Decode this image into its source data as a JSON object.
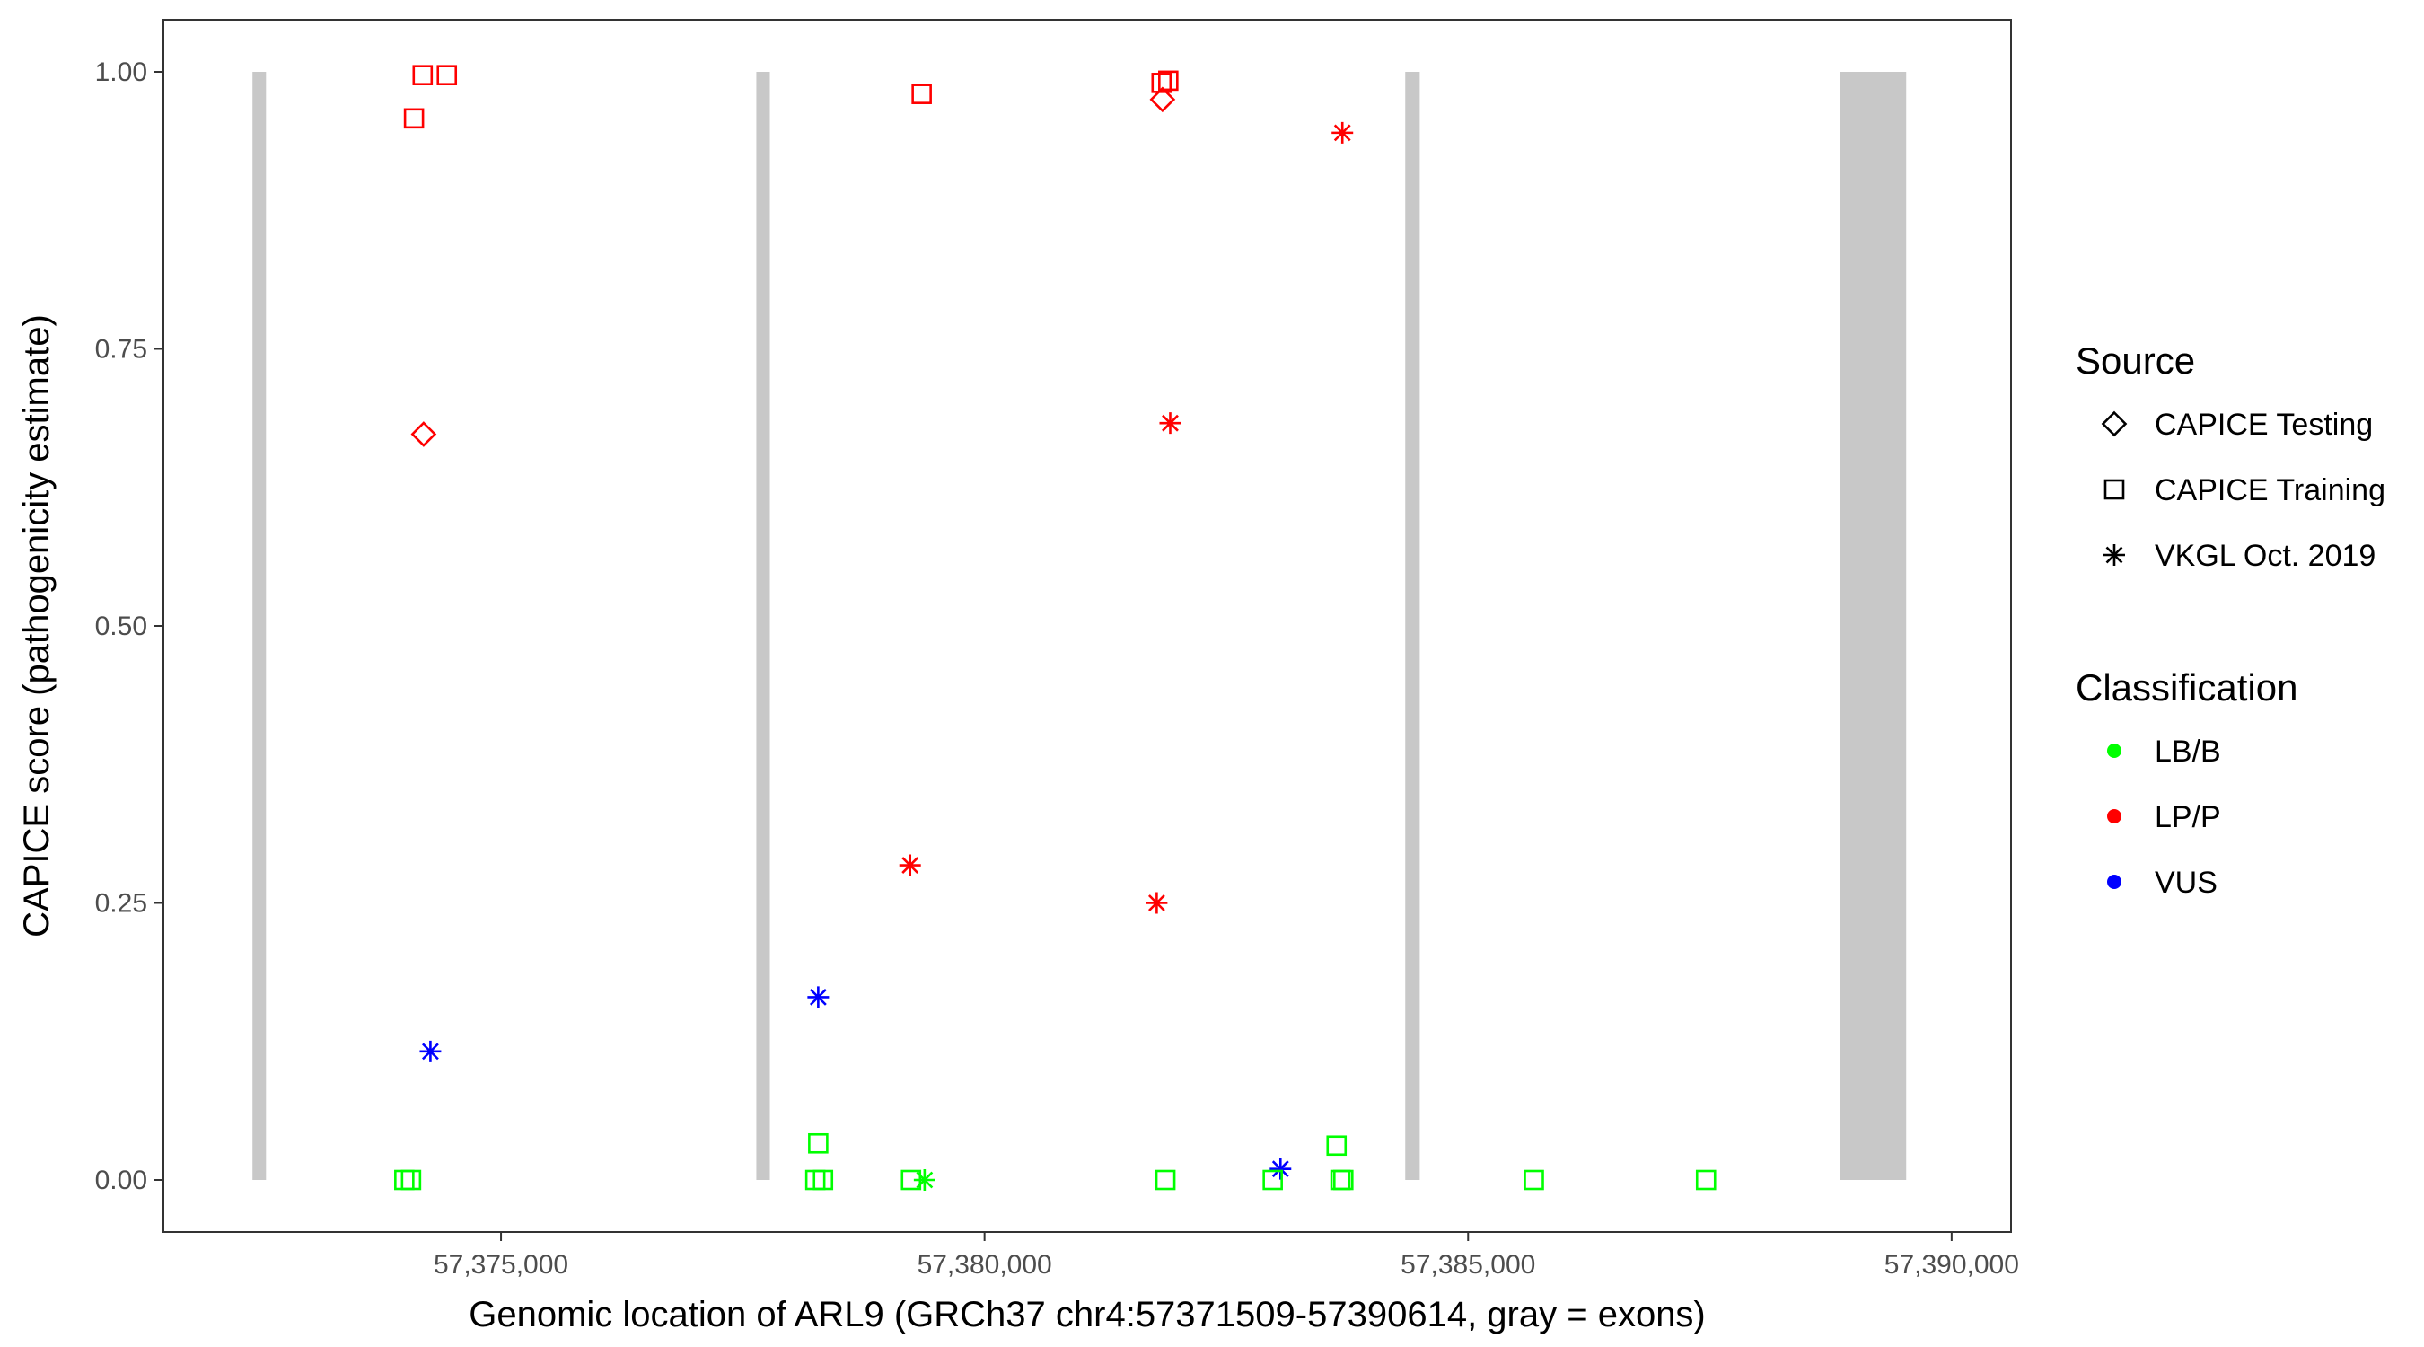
{
  "chart_data": {
    "type": "scatter",
    "xlabel": "Genomic location of ARL9 (GRCh37 chr4:57371509-57390614, gray = exons)",
    "ylabel": "CAPICE score (pathogenicity estimate)",
    "xlim": [
      57371509,
      57390614
    ],
    "ylim": [
      -0.047,
      1.047
    ],
    "x_ticks": [
      57375000,
      57380000,
      57385000,
      57390000
    ],
    "x_tick_labels": [
      "57,375,000",
      "57,380,000",
      "57,385,000",
      "57,390,000"
    ],
    "y_ticks": [
      0,
      0.25,
      0.5,
      0.75,
      1
    ],
    "y_tick_labels": [
      "0.00",
      "0.25",
      "0.50",
      "0.75",
      "1.00"
    ],
    "grid": false,
    "legend_position": "right",
    "exons": [
      {
        "start": 57372430,
        "end": 57372570
      },
      {
        "start": 57377640,
        "end": 57377780
      },
      {
        "start": 57384350,
        "end": 57384500
      },
      {
        "start": 57388850,
        "end": 57389530
      }
    ],
    "colors": {
      "LB/B": "#00ff00",
      "LP/P": "#ff0000",
      "VUS": "#0000ff",
      "exon": "#c8c8c8"
    },
    "legend": {
      "source_title": "Source",
      "source_items": [
        {
          "shape": "diamond",
          "label": "CAPICE Testing"
        },
        {
          "shape": "square",
          "label": "CAPICE Training"
        },
        {
          "shape": "asterisk",
          "label": "VKGL Oct. 2019"
        }
      ],
      "classification_title": "Classification",
      "classification_items": [
        {
          "label": "LB/B"
        },
        {
          "label": "LP/P"
        },
        {
          "label": "VUS"
        }
      ]
    },
    "points": [
      {
        "x": 57374190,
        "y": 0.997,
        "source": "CAPICE Training",
        "classification": "LP/P"
      },
      {
        "x": 57374440,
        "y": 0.997,
        "source": "CAPICE Training",
        "classification": "LP/P"
      },
      {
        "x": 57374100,
        "y": 0.958,
        "source": "CAPICE Training",
        "classification": "LP/P"
      },
      {
        "x": 57379350,
        "y": 0.98,
        "source": "CAPICE Training",
        "classification": "LP/P"
      },
      {
        "x": 57381830,
        "y": 0.99,
        "source": "CAPICE Training",
        "classification": "LP/P"
      },
      {
        "x": 57381900,
        "y": 0.992,
        "source": "CAPICE Training",
        "classification": "LP/P"
      },
      {
        "x": 57381840,
        "y": 0.975,
        "source": "CAPICE Testing",
        "classification": "LP/P"
      },
      {
        "x": 57383700,
        "y": 0.945,
        "source": "VKGL Oct. 2019",
        "classification": "LP/P"
      },
      {
        "x": 57374200,
        "y": 0.673,
        "source": "CAPICE Testing",
        "classification": "LP/P"
      },
      {
        "x": 57381920,
        "y": 0.683,
        "source": "VKGL Oct. 2019",
        "classification": "LP/P"
      },
      {
        "x": 57379230,
        "y": 0.284,
        "source": "VKGL Oct. 2019",
        "classification": "LP/P"
      },
      {
        "x": 57381780,
        "y": 0.25,
        "source": "VKGL Oct. 2019",
        "classification": "LP/P"
      },
      {
        "x": 57374270,
        "y": 0.116,
        "source": "VKGL Oct. 2019",
        "classification": "VUS"
      },
      {
        "x": 57378280,
        "y": 0.165,
        "source": "VKGL Oct. 2019",
        "classification": "VUS"
      },
      {
        "x": 57383060,
        "y": 0.01,
        "source": "VKGL Oct. 2019",
        "classification": "VUS"
      },
      {
        "x": 57378280,
        "y": 0.033,
        "source": "CAPICE Training",
        "classification": "LB/B"
      },
      {
        "x": 57383640,
        "y": 0.031,
        "source": "CAPICE Training",
        "classification": "LB/B"
      },
      {
        "x": 57374000,
        "y": 0.0,
        "source": "CAPICE Training",
        "classification": "LB/B"
      },
      {
        "x": 57374070,
        "y": 0.0,
        "source": "CAPICE Training",
        "classification": "LB/B"
      },
      {
        "x": 57378250,
        "y": 0.0,
        "source": "CAPICE Training",
        "classification": "LB/B"
      },
      {
        "x": 57378330,
        "y": 0.0,
        "source": "CAPICE Training",
        "classification": "LB/B"
      },
      {
        "x": 57379240,
        "y": 0.0,
        "source": "CAPICE Training",
        "classification": "LB/B"
      },
      {
        "x": 57379380,
        "y": 0.0,
        "source": "VKGL Oct. 2019",
        "classification": "LB/B"
      },
      {
        "x": 57381870,
        "y": 0.0,
        "source": "CAPICE Training",
        "classification": "LB/B"
      },
      {
        "x": 57382980,
        "y": 0.0,
        "source": "CAPICE Training",
        "classification": "LB/B"
      },
      {
        "x": 57383680,
        "y": 0.0,
        "source": "CAPICE Training",
        "classification": "LB/B"
      },
      {
        "x": 57383710,
        "y": 0.0,
        "source": "CAPICE Training",
        "classification": "LB/B"
      },
      {
        "x": 57385680,
        "y": 0.0,
        "source": "CAPICE Training",
        "classification": "LB/B"
      },
      {
        "x": 57387460,
        "y": 0.0,
        "source": "CAPICE Training",
        "classification": "LB/B"
      }
    ]
  }
}
